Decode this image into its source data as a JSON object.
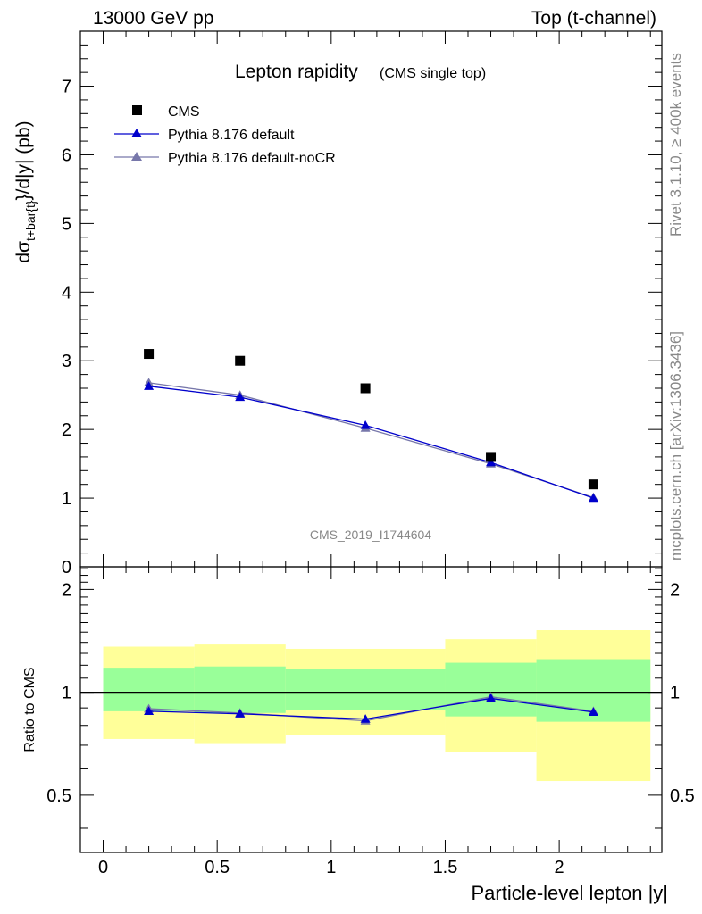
{
  "header": {
    "energy": "13000 GeV pp",
    "process": "Top (t-channel)"
  },
  "side": {
    "rivet": "Rivet 3.1.10, ≥ 400k events",
    "mcplots": "mcplots.cern.ch [arXiv:1306.3436]"
  },
  "chart_data": [
    {
      "type": "scatter",
      "title": "Lepton rapidity",
      "subtitle": "(CMS single top)",
      "ylabel": "dσt+bar{t}/d|y| (pb)",
      "ylabel_parts": {
        "pre": "dσ",
        "sub": "t+bar{t}",
        "post": "}/d|y|  (pb)"
      },
      "xlim": [
        -0.1,
        2.45
      ],
      "ylim": [
        0,
        7.8
      ],
      "yticks": [
        "0",
        "1",
        "2",
        "3",
        "4",
        "5",
        "6",
        "7"
      ],
      "watermark": "CMS_2019_I1744604",
      "legend_position": "top-left",
      "bins": [
        [
          0,
          0.4
        ],
        [
          0.4,
          0.8
        ],
        [
          0.8,
          1.5
        ],
        [
          1.5,
          1.9
        ],
        [
          1.9,
          2.4
        ]
      ],
      "x": [
        0.2,
        0.6,
        1.15,
        1.7,
        2.15
      ],
      "series": [
        {
          "name": "CMS",
          "marker": "square",
          "color": "#000000",
          "values": [
            3.1,
            3.0,
            2.6,
            1.6,
            1.2
          ]
        },
        {
          "name": "Pythia 8.176 default",
          "marker": "triangle",
          "color": "#0000cc",
          "values": [
            2.63,
            2.47,
            2.06,
            1.52,
            1.0
          ]
        },
        {
          "name": "Pythia 8.176 default-noCR",
          "marker": "triangle",
          "color": "#7777aa",
          "values": [
            2.68,
            2.5,
            2.02,
            1.5,
            1.01
          ]
        }
      ]
    },
    {
      "type": "scatter",
      "ylabel": "Ratio to CMS",
      "xlabel": "Particle-level lepton |y|",
      "xlim": [
        -0.1,
        2.45
      ],
      "ylim": [
        0.34,
        2.33
      ],
      "yticks": [
        "0.5",
        "1",
        "2"
      ],
      "xticks": [
        "0",
        "0.5",
        "1",
        "1.5",
        "2"
      ],
      "bands": {
        "green_color": "#99ff99",
        "yellow_color": "#ffff99",
        "inner": [
          [
            0.88,
            1.18
          ],
          [
            0.87,
            1.19
          ],
          [
            0.89,
            1.17
          ],
          [
            0.85,
            1.22
          ],
          [
            0.82,
            1.25
          ]
        ],
        "outer": [
          [
            0.73,
            1.36
          ],
          [
            0.71,
            1.38
          ],
          [
            0.75,
            1.34
          ],
          [
            0.67,
            1.43
          ],
          [
            0.55,
            1.52
          ]
        ]
      },
      "reference": 1.0,
      "series": [
        {
          "name": "Pythia 8.176 default",
          "color": "#0000cc",
          "values": [
            0.88,
            0.865,
            0.835,
            0.96,
            0.875
          ]
        },
        {
          "name": "Pythia 8.176 default-noCR",
          "color": "#7777aa",
          "values": [
            0.895,
            0.87,
            0.825,
            0.97,
            0.88
          ]
        }
      ]
    }
  ]
}
